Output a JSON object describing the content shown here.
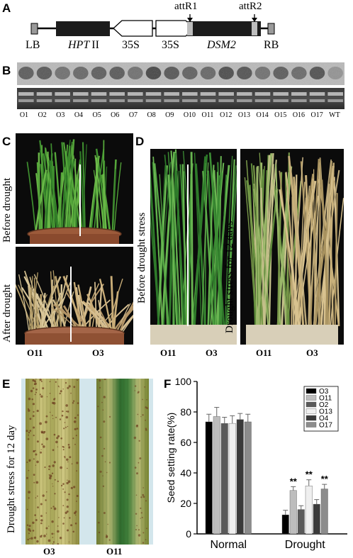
{
  "panels": {
    "A": {
      "label": "A",
      "lb": "LB",
      "hpt": "HPT",
      "hpt_suffix": "II",
      "p35s_1": "35S",
      "p35s_2": "35S",
      "dsm2": "DSM2",
      "rb": "RB",
      "attr1": "attR1",
      "attr2": "attR2"
    },
    "B": {
      "label": "B",
      "lanes": [
        "O1",
        "O2",
        "O3",
        "O4",
        "O5",
        "O6",
        "O7",
        "O8",
        "O9",
        "O10",
        "O11",
        "O12",
        "O13",
        "O14",
        "O15",
        "O16",
        "O17",
        "WT"
      ]
    },
    "C": {
      "label": "C",
      "before": "Before drought",
      "after": "After drought",
      "left": "O11",
      "right": "O3"
    },
    "D": {
      "label": "D",
      "before": "Before drought stress",
      "after": "Drought stress for 12 days",
      "left1": "O11",
      "right1": "O3",
      "left2": "O11",
      "right2": "O3"
    },
    "E": {
      "label": "E",
      "caption": "Drought stress for 12 day",
      "left": "O3",
      "right": "O11"
    },
    "F": {
      "label": "F"
    }
  },
  "chart_data": {
    "type": "bar",
    "categories": [
      "Normal",
      "Drought"
    ],
    "ylabel": "Seed setting rate(%)",
    "ylim": [
      0,
      100
    ],
    "yticks": [
      "0",
      "20",
      "40",
      "60",
      "80",
      "100"
    ],
    "legend_position": "top-right",
    "series": [
      {
        "name": "O3",
        "values": [
          73.5,
          12.5
        ],
        "errors": [
          5,
          3
        ],
        "color": "#000000",
        "sig": [
          "",
          ""
        ]
      },
      {
        "name": "O11",
        "values": [
          77,
          28.5
        ],
        "errors": [
          6,
          2.5
        ],
        "color": "#bdbdbd",
        "sig": [
          "",
          "**"
        ]
      },
      {
        "name": "O2",
        "values": [
          72.5,
          16
        ],
        "errors": [
          4,
          2.5
        ],
        "color": "#5a5a5a",
        "sig": [
          "",
          ""
        ]
      },
      {
        "name": "O13",
        "values": [
          72.5,
          31.5
        ],
        "errors": [
          5,
          4
        ],
        "color": "#efefef",
        "sig": [
          "",
          "**"
        ]
      },
      {
        "name": "O4",
        "values": [
          75,
          19.5
        ],
        "errors": [
          4,
          3
        ],
        "color": "#3a3a3a",
        "sig": [
          "",
          ""
        ]
      },
      {
        "name": "O17",
        "values": [
          73.5,
          29.5
        ],
        "errors": [
          5,
          3
        ],
        "color": "#8c8c8c",
        "sig": [
          "",
          "**"
        ]
      }
    ]
  }
}
